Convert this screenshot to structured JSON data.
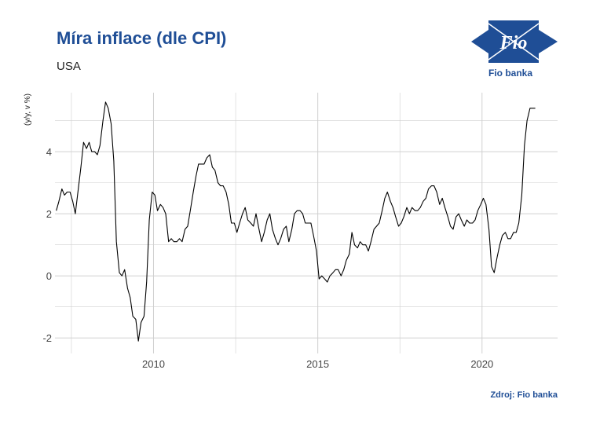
{
  "title": "Míra inflace (dle CPI)",
  "subtitle": "USA",
  "source": "Zdroj: Fio banka",
  "logo": {
    "brand_text": "Fio banka",
    "mark_text": "Fio",
    "icon": "fio-banka-logo",
    "color": "#1f4e96"
  },
  "colors": {
    "title": "#1f4e96",
    "line": "#000000",
    "grid": "#d0d0d0"
  },
  "chart_data": {
    "type": "line",
    "title": "Míra inflace (dle CPI)",
    "subtitle": "USA",
    "ylabel": "(y/y, v %)",
    "xlabel": "",
    "xlim": [
      2007.0,
      2022.3
    ],
    "ylim": [
      -2.5,
      5.9
    ],
    "x_ticks": [
      2010,
      2015,
      2020
    ],
    "x_tick_labels": [
      "2010",
      "2015",
      "2020"
    ],
    "y_ticks": [
      -2,
      0,
      2,
      4
    ],
    "y_tick_labels": [
      "-2",
      "0",
      "2",
      "4"
    ],
    "grid": true,
    "series": [
      {
        "x": [
          2007.04,
          2007.12,
          2007.21,
          2007.29,
          2007.37,
          2007.46,
          2007.54,
          2007.62,
          2007.71,
          2007.79,
          2007.87,
          2007.96,
          2008.04,
          2008.12,
          2008.21,
          2008.29,
          2008.37,
          2008.46,
          2008.54,
          2008.62,
          2008.71,
          2008.79,
          2008.87,
          2008.96,
          2009.04,
          2009.12,
          2009.21,
          2009.29,
          2009.37,
          2009.46,
          2009.54,
          2009.62,
          2009.71,
          2009.79,
          2009.87,
          2009.96,
          2010.04,
          2010.12,
          2010.21,
          2010.29,
          2010.37,
          2010.46,
          2010.54,
          2010.62,
          2010.71,
          2010.79,
          2010.87,
          2010.96,
          2011.04,
          2011.12,
          2011.21,
          2011.29,
          2011.37,
          2011.46,
          2011.54,
          2011.62,
          2011.71,
          2011.79,
          2011.87,
          2011.96,
          2012.04,
          2012.12,
          2012.21,
          2012.29,
          2012.37,
          2012.46,
          2012.54,
          2012.62,
          2012.71,
          2012.79,
          2012.87,
          2012.96,
          2013.04,
          2013.12,
          2013.21,
          2013.29,
          2013.37,
          2013.46,
          2013.54,
          2013.62,
          2013.71,
          2013.79,
          2013.87,
          2013.96,
          2014.04,
          2014.12,
          2014.21,
          2014.29,
          2014.37,
          2014.46,
          2014.54,
          2014.62,
          2014.71,
          2014.79,
          2014.87,
          2014.96,
          2015.04,
          2015.12,
          2015.21,
          2015.29,
          2015.37,
          2015.46,
          2015.54,
          2015.62,
          2015.71,
          2015.79,
          2015.87,
          2015.96,
          2016.04,
          2016.12,
          2016.21,
          2016.29,
          2016.37,
          2016.46,
          2016.54,
          2016.62,
          2016.71,
          2016.79,
          2016.87,
          2016.96,
          2017.04,
          2017.12,
          2017.21,
          2017.29,
          2017.37,
          2017.46,
          2017.54,
          2017.62,
          2017.71,
          2017.79,
          2017.87,
          2017.96,
          2018.04,
          2018.12,
          2018.21,
          2018.29,
          2018.37,
          2018.46,
          2018.54,
          2018.62,
          2018.71,
          2018.79,
          2018.87,
          2018.96,
          2019.04,
          2019.12,
          2019.21,
          2019.29,
          2019.37,
          2019.46,
          2019.54,
          2019.62,
          2019.71,
          2019.79,
          2019.87,
          2019.96,
          2020.04,
          2020.12,
          2020.21,
          2020.29,
          2020.37,
          2020.46,
          2020.54,
          2020.62,
          2020.71,
          2020.79,
          2020.87,
          2020.96,
          2021.04,
          2021.12,
          2021.21,
          2021.29,
          2021.37,
          2021.46,
          2021.54,
          2021.62
        ],
        "values": [
          2.1,
          2.4,
          2.8,
          2.6,
          2.7,
          2.7,
          2.4,
          2.0,
          2.8,
          3.5,
          4.3,
          4.1,
          4.3,
          4.0,
          4.0,
          3.9,
          4.2,
          5.0,
          5.6,
          5.4,
          4.9,
          3.7,
          1.1,
          0.1,
          0.0,
          0.2,
          -0.4,
          -0.7,
          -1.3,
          -1.4,
          -2.1,
          -1.5,
          -1.3,
          -0.2,
          1.8,
          2.7,
          2.6,
          2.1,
          2.3,
          2.2,
          2.0,
          1.1,
          1.2,
          1.1,
          1.1,
          1.2,
          1.1,
          1.5,
          1.6,
          2.1,
          2.7,
          3.2,
          3.6,
          3.6,
          3.6,
          3.8,
          3.9,
          3.5,
          3.4,
          3.0,
          2.9,
          2.9,
          2.7,
          2.3,
          1.7,
          1.7,
          1.4,
          1.7,
          2.0,
          2.2,
          1.8,
          1.7,
          1.6,
          2.0,
          1.5,
          1.1,
          1.4,
          1.8,
          2.0,
          1.5,
          1.2,
          1.0,
          1.2,
          1.5,
          1.6,
          1.1,
          1.5,
          2.0,
          2.1,
          2.1,
          2.0,
          1.7,
          1.7,
          1.7,
          1.3,
          0.8,
          -0.1,
          0.0,
          -0.1,
          -0.2,
          0.0,
          0.1,
          0.2,
          0.2,
          0.0,
          0.2,
          0.5,
          0.7,
          1.4,
          1.0,
          0.9,
          1.1,
          1.0,
          1.0,
          0.8,
          1.1,
          1.5,
          1.6,
          1.7,
          2.1,
          2.5,
          2.7,
          2.4,
          2.2,
          1.9,
          1.6,
          1.7,
          1.9,
          2.2,
          2.0,
          2.2,
          2.1,
          2.1,
          2.2,
          2.4,
          2.5,
          2.8,
          2.9,
          2.9,
          2.7,
          2.3,
          2.5,
          2.2,
          1.9,
          1.6,
          1.5,
          1.9,
          2.0,
          1.8,
          1.6,
          1.8,
          1.7,
          1.7,
          1.8,
          2.1,
          2.3,
          2.5,
          2.3,
          1.5,
          0.3,
          0.1,
          0.6,
          1.0,
          1.3,
          1.4,
          1.2,
          1.2,
          1.4,
          1.4,
          1.7,
          2.6,
          4.2,
          5.0,
          5.4,
          5.4,
          5.4
        ]
      }
    ]
  }
}
